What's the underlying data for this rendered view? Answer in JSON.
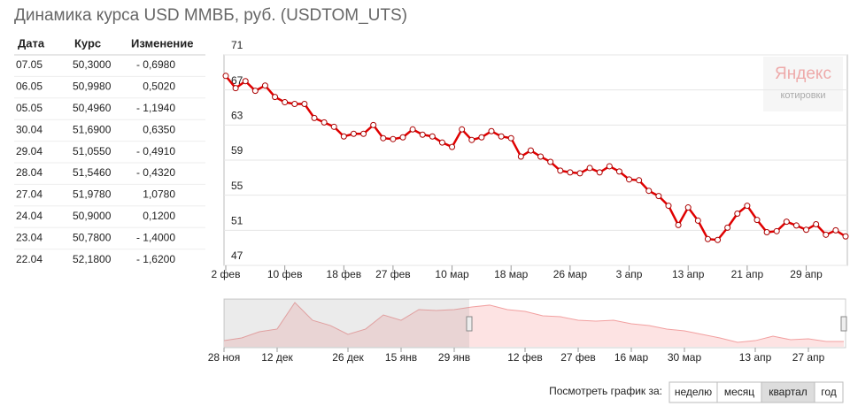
{
  "title": "Динамика курса USD ММВБ, руб. (USDTOM_UTS)",
  "table": {
    "headers": [
      "Дата",
      "Курс",
      "Изменение"
    ],
    "rows": [
      [
        "07.05",
        "50,3000",
        "- 0,6980"
      ],
      [
        "06.05",
        "50,9980",
        "0,5020"
      ],
      [
        "05.05",
        "50,4960",
        "- 1,1940"
      ],
      [
        "30.04",
        "51,6900",
        "0,6350"
      ],
      [
        "29.04",
        "51,0550",
        "- 0,4910"
      ],
      [
        "28.04",
        "51,5460",
        "- 0,4320"
      ],
      [
        "27.04",
        "51,9780",
        "1,0780"
      ],
      [
        "24.04",
        "50,9000",
        "0,1200"
      ],
      [
        "23.04",
        "50,7800",
        "- 1,4000"
      ],
      [
        "22.04",
        "52,1800",
        "- 1,6200"
      ]
    ]
  },
  "logo": {
    "name": "Яндекс",
    "caption": "котировки"
  },
  "period": {
    "label": "Посмотреть график за:",
    "options": [
      "неделю",
      "месяц",
      "квартал",
      "год"
    ],
    "active": 2
  },
  "chart_data": [
    {
      "type": "line",
      "color": "#e00000",
      "ylim": [
        47,
        71
      ],
      "yticks": [
        47,
        51,
        55,
        59,
        63,
        67,
        71
      ],
      "grid": true,
      "categories": [
        "2 фев",
        null,
        null,
        null,
        null,
        null,
        "10 фев",
        null,
        null,
        null,
        null,
        null,
        "18 фев",
        null,
        null,
        null,
        null,
        "27 фев",
        null,
        null,
        null,
        null,
        null,
        "10 мар",
        null,
        null,
        null,
        null,
        null,
        "18 мар",
        null,
        null,
        null,
        null,
        null,
        "26 мар",
        null,
        null,
        null,
        null,
        null,
        "3 апр",
        null,
        null,
        null,
        null,
        null,
        "13 апр",
        null,
        null,
        null,
        null,
        null,
        "21 апр",
        null,
        null,
        null,
        null,
        null,
        "29 апр",
        null,
        null,
        null,
        null
      ],
      "values": [
        68.6,
        67.2,
        68,
        66.9,
        67.5,
        66.2,
        65.6,
        65.4,
        65.4,
        63.8,
        63.3,
        62.8,
        61.7,
        62,
        62,
        63,
        61.5,
        61.4,
        61.6,
        62.5,
        61.9,
        61.7,
        61,
        60.5,
        62.5,
        61.3,
        61.6,
        62.3,
        61.7,
        61.5,
        59.4,
        60.1,
        59.4,
        58.8,
        57.8,
        57.6,
        57.5,
        58.1,
        57.6,
        58.3,
        57.7,
        56.8,
        56.7,
        55.5,
        54.9,
        53.8,
        51.6,
        53.6,
        52.1,
        50,
        49.9,
        51.3,
        52.9,
        53.8,
        52.18,
        50.78,
        50.9,
        51.978,
        51.546,
        51.055,
        51.69,
        50.496,
        50.998,
        50.3
      ]
    },
    {
      "type": "area",
      "color": "#f2a0a0",
      "ylim": [
        30,
        72
      ],
      "categories": [
        "28 ноя",
        null,
        null,
        "12 дек",
        null,
        null,
        null,
        "26 дек",
        null,
        null,
        "15 янв",
        null,
        null,
        "29 янв",
        null,
        null,
        null,
        "12 фев",
        null,
        null,
        "27 фев",
        null,
        null,
        "16 мар",
        null,
        null,
        "30 мар",
        null,
        null,
        null,
        "13 апр",
        null,
        null,
        "27 апр",
        null,
        null
      ],
      "values": [
        35.4,
        37.8,
        43.2,
        45.6,
        68.9,
        53.3,
        48.7,
        40.9,
        45.6,
        58,
        53.3,
        62.7,
        61.9,
        62.7,
        65,
        66.6,
        62.7,
        61.1,
        57.2,
        56.4,
        53.3,
        52.6,
        53.3,
        50.2,
        48.7,
        45.6,
        44,
        40.9,
        37.8,
        33.9,
        35.4,
        39.3,
        36.2,
        37,
        34.7,
        34.7
      ]
    }
  ]
}
